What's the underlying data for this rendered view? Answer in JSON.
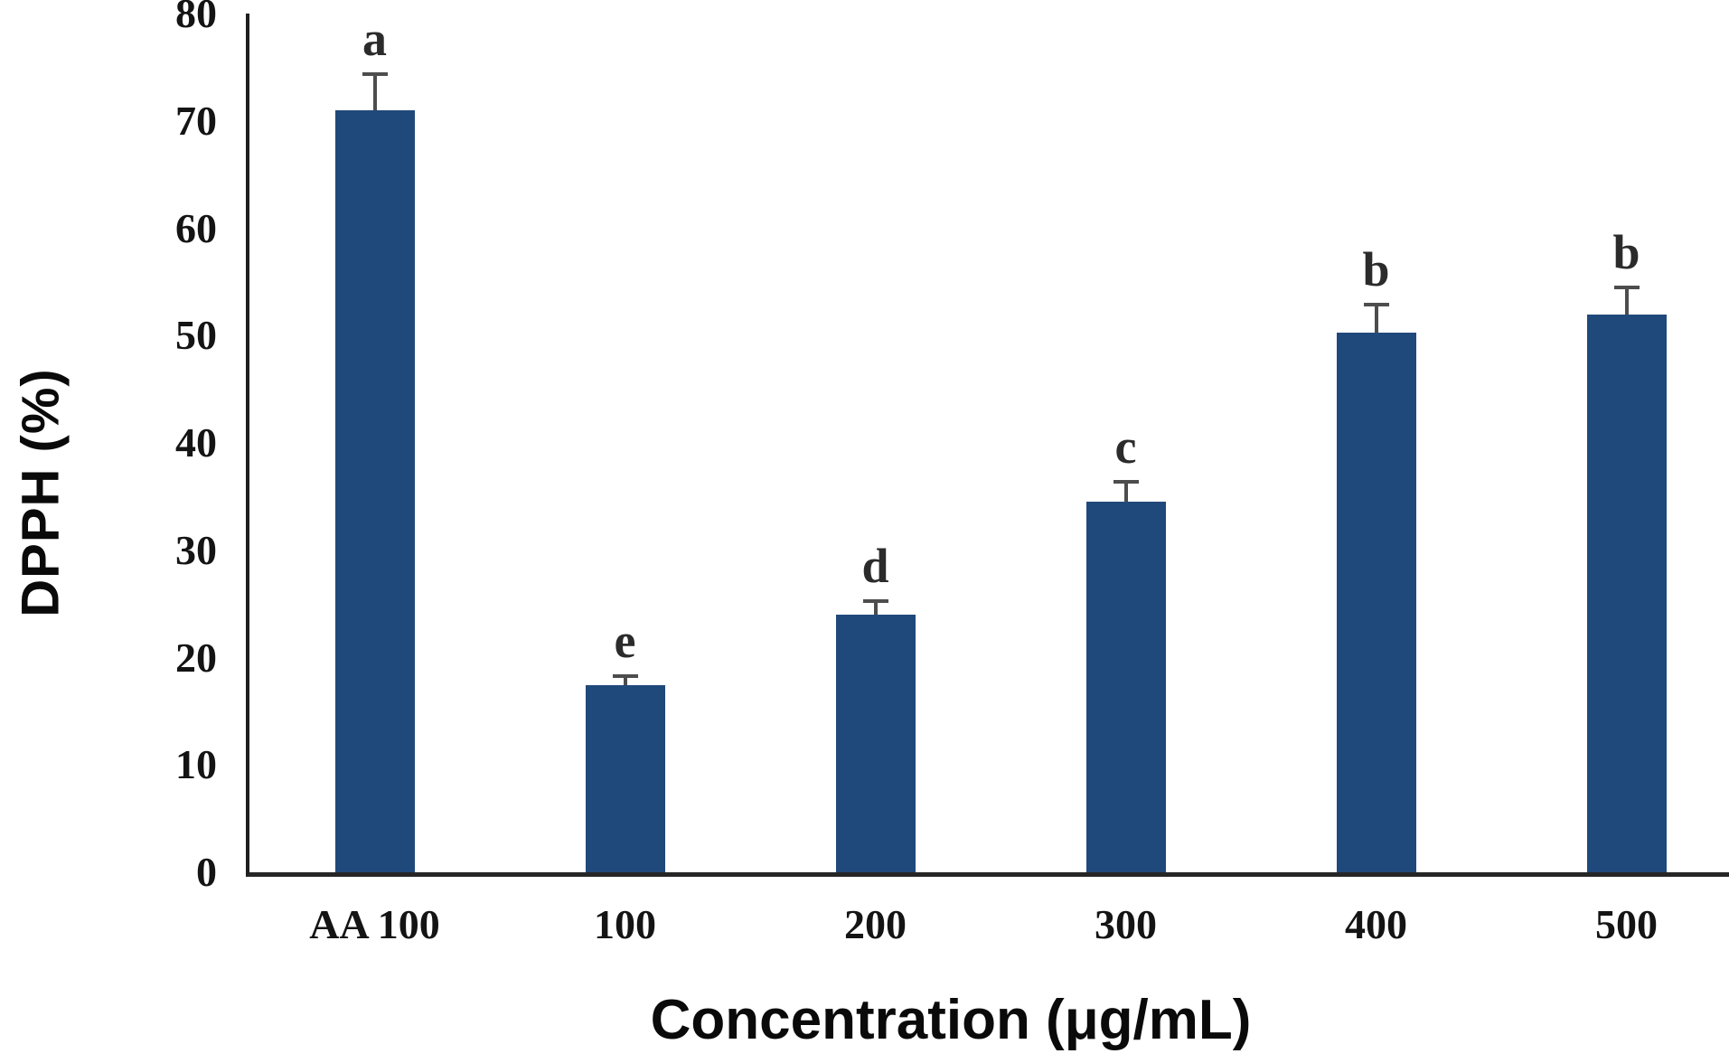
{
  "chart_data": {
    "type": "bar",
    "title": "",
    "categories": [
      "AA 100",
      "100",
      "200",
      "300",
      "400",
      "500"
    ],
    "values": [
      71,
      17.4,
      24,
      34.5,
      50.3,
      52
    ],
    "errors": [
      3.4,
      0.9,
      1.3,
      1.9,
      2.6,
      2.5
    ],
    "sig_letters": [
      "a",
      "e",
      "d",
      "c",
      "b",
      "b"
    ],
    "xlabel": "Concentration (μg/mL)",
    "ylabel": "DPPH (%)",
    "ylim": [
      0,
      80
    ],
    "yticks": [
      0,
      10,
      20,
      30,
      40,
      50,
      60,
      70,
      80
    ],
    "grid": false,
    "legend_position": "none",
    "bar_color": "#20497b",
    "error_bar_color": "#4d4d4d",
    "axis_color": "#1f1f1f",
    "tick_text_color": "#141414",
    "letter_text_color": "#2b2b2b"
  }
}
